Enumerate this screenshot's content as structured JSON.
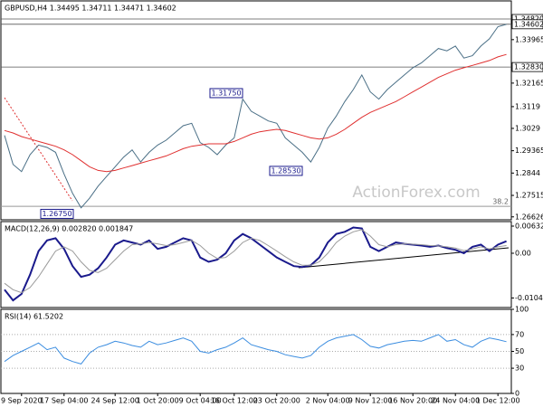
{
  "chart_data": [
    {
      "type": "line",
      "title": "GBPUSD,H4  1.34495 1.34711 1.34471 1.34602",
      "ylim": [
        1.26505,
        1.35569
      ],
      "yticks": [
        1.33965,
        1.32165,
        1.3119,
        1.3029,
        1.29365,
        1.2844,
        1.27515,
        1.26626
      ],
      "series": [
        {
          "color": "#4a6f86",
          "values": [
            1.3,
            1.288,
            1.285,
            1.292,
            1.296,
            1.295,
            1.293,
            1.284,
            1.276,
            1.27,
            1.274,
            1.279,
            1.283,
            1.287,
            1.291,
            1.294,
            1.289,
            1.293,
            1.296,
            1.298,
            1.301,
            1.304,
            1.305,
            1.297,
            1.295,
            1.292,
            1.296,
            1.299,
            1.315,
            1.31,
            1.308,
            1.306,
            1.305,
            1.299,
            1.296,
            1.293,
            1.289,
            1.295,
            1.303,
            1.308,
            1.314,
            1.319,
            1.325,
            1.318,
            1.315,
            1.319,
            1.322,
            1.325,
            1.328,
            1.33,
            1.333,
            1.336,
            1.335,
            1.337,
            1.332,
            1.333,
            1.337,
            1.34,
            1.345,
            1.346
          ]
        },
        {
          "color": "#e03030",
          "values": [
            1.302,
            1.301,
            1.2995,
            1.2985,
            1.2975,
            1.2965,
            1.2955,
            1.294,
            1.292,
            1.2895,
            1.287,
            1.2855,
            1.285,
            1.2855,
            1.2865,
            1.2875,
            1.2885,
            1.2895,
            1.2905,
            1.2915,
            1.293,
            1.2945,
            1.2955,
            1.296,
            1.2965,
            1.2965,
            1.2965,
            1.2975,
            1.299,
            1.3005,
            1.3015,
            1.302,
            1.3025,
            1.302,
            1.301,
            1.3,
            1.299,
            1.2985,
            1.299,
            1.3005,
            1.3025,
            1.305,
            1.3075,
            1.3095,
            1.311,
            1.3125,
            1.314,
            1.316,
            1.318,
            1.32,
            1.322,
            1.324,
            1.3255,
            1.327,
            1.328,
            1.329,
            1.33,
            1.331,
            1.3325,
            1.3335
          ]
        }
      ],
      "levels": [
        {
          "value": 1.3482,
          "label": "1.34820"
        },
        {
          "value": 1.34602,
          "label": "1.34602"
        },
        {
          "value": 1.3283,
          "label": "1.32830"
        }
      ],
      "annotations": [
        {
          "value": 1.3175,
          "label": "1.31750"
        },
        {
          "value": 1.2853,
          "label": "1.28530"
        },
        {
          "value": 1.2675,
          "label": "1.26750"
        }
      ],
      "fib": {
        "value": 1.2706,
        "label": "38.2"
      },
      "watermark": "ActionForex.com"
    },
    {
      "type": "line",
      "title": "MACD(12,26,9) 0.002820 0.001847",
      "ylim": [
        -0.01266,
        0.00738
      ],
      "yticks": [
        0.006326,
        {
          "value": 0,
          "label": "0.00"
        },
        -0.010438
      ],
      "series": [
        {
          "color": "#1a1a8c",
          "values": [
            -0.0085,
            -0.011,
            -0.0095,
            -0.005,
            0.0005,
            0.003,
            0.0035,
            0.001,
            -0.003,
            -0.0055,
            -0.005,
            -0.0035,
            -0.001,
            0.002,
            0.003,
            0.0025,
            0.002,
            0.003,
            0.001,
            0.0015,
            0.0025,
            0.0035,
            0.003,
            -0.001,
            -0.002,
            -0.0015,
            0,
            0.003,
            0.0045,
            0.0035,
            0.002,
            0.0005,
            -0.001,
            -0.002,
            -0.003,
            -0.0032,
            -0.0028,
            -0.001,
            0.0025,
            0.0045,
            0.005,
            0.006,
            0.0058,
            0.0015,
            0.0005,
            0.0015,
            0.0025,
            0.0022,
            0.002,
            0.0018,
            0.0015,
            0.0018,
            0.0012,
            0.0008,
            0,
            0.0015,
            0.002,
            0.0005,
            0.002,
            0.0028
          ]
        },
        {
          "color": "#9a9a9a",
          "values": [
            -0.007,
            -0.0085,
            -0.0092,
            -0.008,
            -0.0055,
            -0.0025,
            0.0005,
            0.0015,
            0.0005,
            -0.002,
            -0.004,
            -0.0045,
            -0.0035,
            -0.0015,
            0.0005,
            0.002,
            0.0022,
            0.0025,
            0.0022,
            0.0018,
            0.002,
            0.0025,
            0.003,
            0.0018,
            0,
            -0.0012,
            -0.001,
            0.0005,
            0.0025,
            0.0035,
            0.003,
            0.0018,
            0.0005,
            -0.0008,
            -0.002,
            -0.0028,
            -0.0028,
            -0.002,
            0,
            0.0025,
            0.004,
            0.005,
            0.0055,
            0.004,
            0.002,
            0.0015,
            0.002,
            0.0022,
            0.0021,
            0.002,
            0.0018,
            0.0017,
            0.0015,
            0.0012,
            0.0006,
            0.001,
            0.0015,
            0.001,
            0.0015,
            0.0018
          ]
        }
      ]
    },
    {
      "type": "line",
      "title": "RSI(14) 61.5202",
      "ylim": [
        0,
        100
      ],
      "yticks": [
        100,
        70,
        50,
        30,
        0
      ],
      "grid": true,
      "series": [
        {
          "color": "#3b8de0",
          "values": [
            38,
            45,
            50,
            55,
            60,
            52,
            55,
            42,
            38,
            35,
            48,
            55,
            58,
            62,
            60,
            57,
            55,
            62,
            58,
            60,
            63,
            66,
            62,
            50,
            48,
            52,
            55,
            60,
            66,
            58,
            55,
            52,
            50,
            46,
            44,
            42,
            45,
            55,
            62,
            66,
            68,
            70,
            64,
            56,
            54,
            58,
            60,
            62,
            63,
            62,
            66,
            70,
            62,
            64,
            58,
            55,
            62,
            66,
            64,
            61.5
          ]
        }
      ],
      "categories": [
        null,
        null,
        "9 Sep 2020",
        null,
        null,
        null,
        null,
        "17 Sep 04:00",
        null,
        null,
        null,
        null,
        null,
        "24 Sep 12:00",
        null,
        null,
        null,
        null,
        "1 Oct 20:00",
        null,
        null,
        null,
        null,
        "9 Oct 04:00",
        null,
        null,
        null,
        "16 Oct 12:00",
        null,
        null,
        null,
        null,
        "23 Oct 20:00",
        null,
        null,
        null,
        null,
        null,
        "2 Nov 04:00",
        null,
        null,
        null,
        null,
        "9 Nov 12:00",
        null,
        null,
        null,
        null,
        "16 Nov 20:00",
        null,
        null,
        null,
        null,
        "24 Nov 04:00",
        null,
        null,
        null,
        null,
        "1 Dec 12:00",
        null
      ]
    }
  ]
}
